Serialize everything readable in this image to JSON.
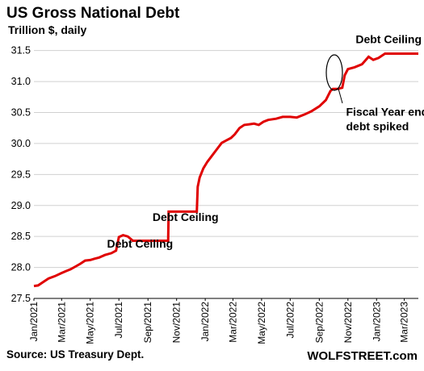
{
  "chart_data": {
    "type": "line",
    "title": "US Gross National Debt",
    "subtitle": "Trillion $, daily",
    "ylim": [
      27.5,
      31.6
    ],
    "yticks": [
      "27.5",
      "28.0",
      "28.5",
      "29.0",
      "29.5",
      "30.0",
      "30.5",
      "31.0",
      "31.5"
    ],
    "xlim": [
      "2021-01-01",
      "2023-03-31"
    ],
    "xticks": [
      {
        "date": "2021-01-01",
        "label": "Jan/2021"
      },
      {
        "date": "2021-03-01",
        "label": "Mar/2021"
      },
      {
        "date": "2021-05-01",
        "label": "May/2021"
      },
      {
        "date": "2021-07-01",
        "label": "Jul/2021"
      },
      {
        "date": "2021-09-01",
        "label": "Sep/2021"
      },
      {
        "date": "2021-11-01",
        "label": "Nov/2021"
      },
      {
        "date": "2022-01-01",
        "label": "Jan/2022"
      },
      {
        "date": "2022-03-01",
        "label": "Mar/2022"
      },
      {
        "date": "2022-05-01",
        "label": "May/2022"
      },
      {
        "date": "2022-07-01",
        "label": "Jul/2022"
      },
      {
        "date": "2022-09-01",
        "label": "Sep/2022"
      },
      {
        "date": "2022-11-01",
        "label": "Nov/2022"
      },
      {
        "date": "2023-01-01",
        "label": "Jan/2023"
      },
      {
        "date": "2023-03-01",
        "label": "Mar/2023"
      }
    ],
    "grid": "horizontal",
    "line_color": "#e00000",
    "series": [
      {
        "points": [
          [
            "2021-01-01",
            27.7
          ],
          [
            "2021-01-10",
            27.71
          ],
          [
            "2021-01-20",
            27.76
          ],
          [
            "2021-02-01",
            27.82
          ],
          [
            "2021-02-15",
            27.86
          ],
          [
            "2021-03-01",
            27.91
          ],
          [
            "2021-03-10",
            27.94
          ],
          [
            "2021-03-20",
            27.97
          ],
          [
            "2021-04-01",
            28.02
          ],
          [
            "2021-04-10",
            28.06
          ],
          [
            "2021-04-20",
            28.11
          ],
          [
            "2021-05-01",
            28.12
          ],
          [
            "2021-05-10",
            28.14
          ],
          [
            "2021-05-20",
            28.16
          ],
          [
            "2021-06-01",
            28.2
          ],
          [
            "2021-06-15",
            28.23
          ],
          [
            "2021-06-25",
            28.27
          ],
          [
            "2021-07-01",
            28.49
          ],
          [
            "2021-07-10",
            28.52
          ],
          [
            "2021-07-20",
            28.5
          ],
          [
            "2021-07-31",
            28.43
          ],
          [
            "2021-08-15",
            28.43
          ],
          [
            "2021-09-01",
            28.43
          ],
          [
            "2021-09-15",
            28.43
          ],
          [
            "2021-10-01",
            28.43
          ],
          [
            "2021-10-14",
            28.43
          ],
          [
            "2021-10-15",
            28.9
          ],
          [
            "2021-11-01",
            28.9
          ],
          [
            "2021-11-15",
            28.9
          ],
          [
            "2021-12-14",
            28.9
          ],
          [
            "2021-12-16",
            29.3
          ],
          [
            "2021-12-20",
            29.45
          ],
          [
            "2021-12-28",
            29.6
          ],
          [
            "2022-01-05",
            29.7
          ],
          [
            "2022-01-15",
            29.8
          ],
          [
            "2022-01-25",
            29.9
          ],
          [
            "2022-02-05",
            30.01
          ],
          [
            "2022-02-15",
            30.05
          ],
          [
            "2022-02-25",
            30.09
          ],
          [
            "2022-03-05",
            30.15
          ],
          [
            "2022-03-15",
            30.25
          ],
          [
            "2022-03-25",
            30.3
          ],
          [
            "2022-04-05",
            30.31
          ],
          [
            "2022-04-15",
            30.32
          ],
          [
            "2022-04-25",
            30.3
          ],
          [
            "2022-05-05",
            30.35
          ],
          [
            "2022-05-15",
            30.38
          ],
          [
            "2022-06-01",
            30.4
          ],
          [
            "2022-06-15",
            30.43
          ],
          [
            "2022-07-01",
            30.43
          ],
          [
            "2022-07-15",
            30.42
          ],
          [
            "2022-08-01",
            30.47
          ],
          [
            "2022-08-15",
            30.52
          ],
          [
            "2022-09-01",
            30.6
          ],
          [
            "2022-09-15",
            30.7
          ],
          [
            "2022-09-25",
            30.85
          ],
          [
            "2022-09-30",
            30.88
          ],
          [
            "2022-10-10",
            30.88
          ],
          [
            "2022-10-20",
            30.9
          ],
          [
            "2022-10-25",
            31.1
          ],
          [
            "2022-11-01",
            31.2
          ],
          [
            "2022-11-15",
            31.23
          ],
          [
            "2022-12-01",
            31.28
          ],
          [
            "2022-12-15",
            31.4
          ],
          [
            "2022-12-25",
            31.35
          ],
          [
            "2023-01-05",
            31.38
          ],
          [
            "2023-01-19",
            31.45
          ],
          [
            "2023-02-01",
            31.45
          ],
          [
            "2023-03-01",
            31.45
          ],
          [
            "2023-03-31",
            31.45
          ]
        ]
      }
    ],
    "annotations": [
      {
        "text": "Debt Ceiling",
        "date": "2021-08-15",
        "y": 28.32
      },
      {
        "text": "Debt Ceiling",
        "date": "2021-11-20",
        "y": 28.75
      },
      {
        "text": "Debt Ceiling",
        "date": "2023-02-15",
        "y": 31.62
      },
      {
        "lines": [
          "Fiscal Year ended,",
          "debt spiked"
        ],
        "date": "2022-10-28",
        "y": 30.45
      }
    ],
    "source": "Source: US Treasury Dept.",
    "brand": "WOLFSTREET.com"
  }
}
